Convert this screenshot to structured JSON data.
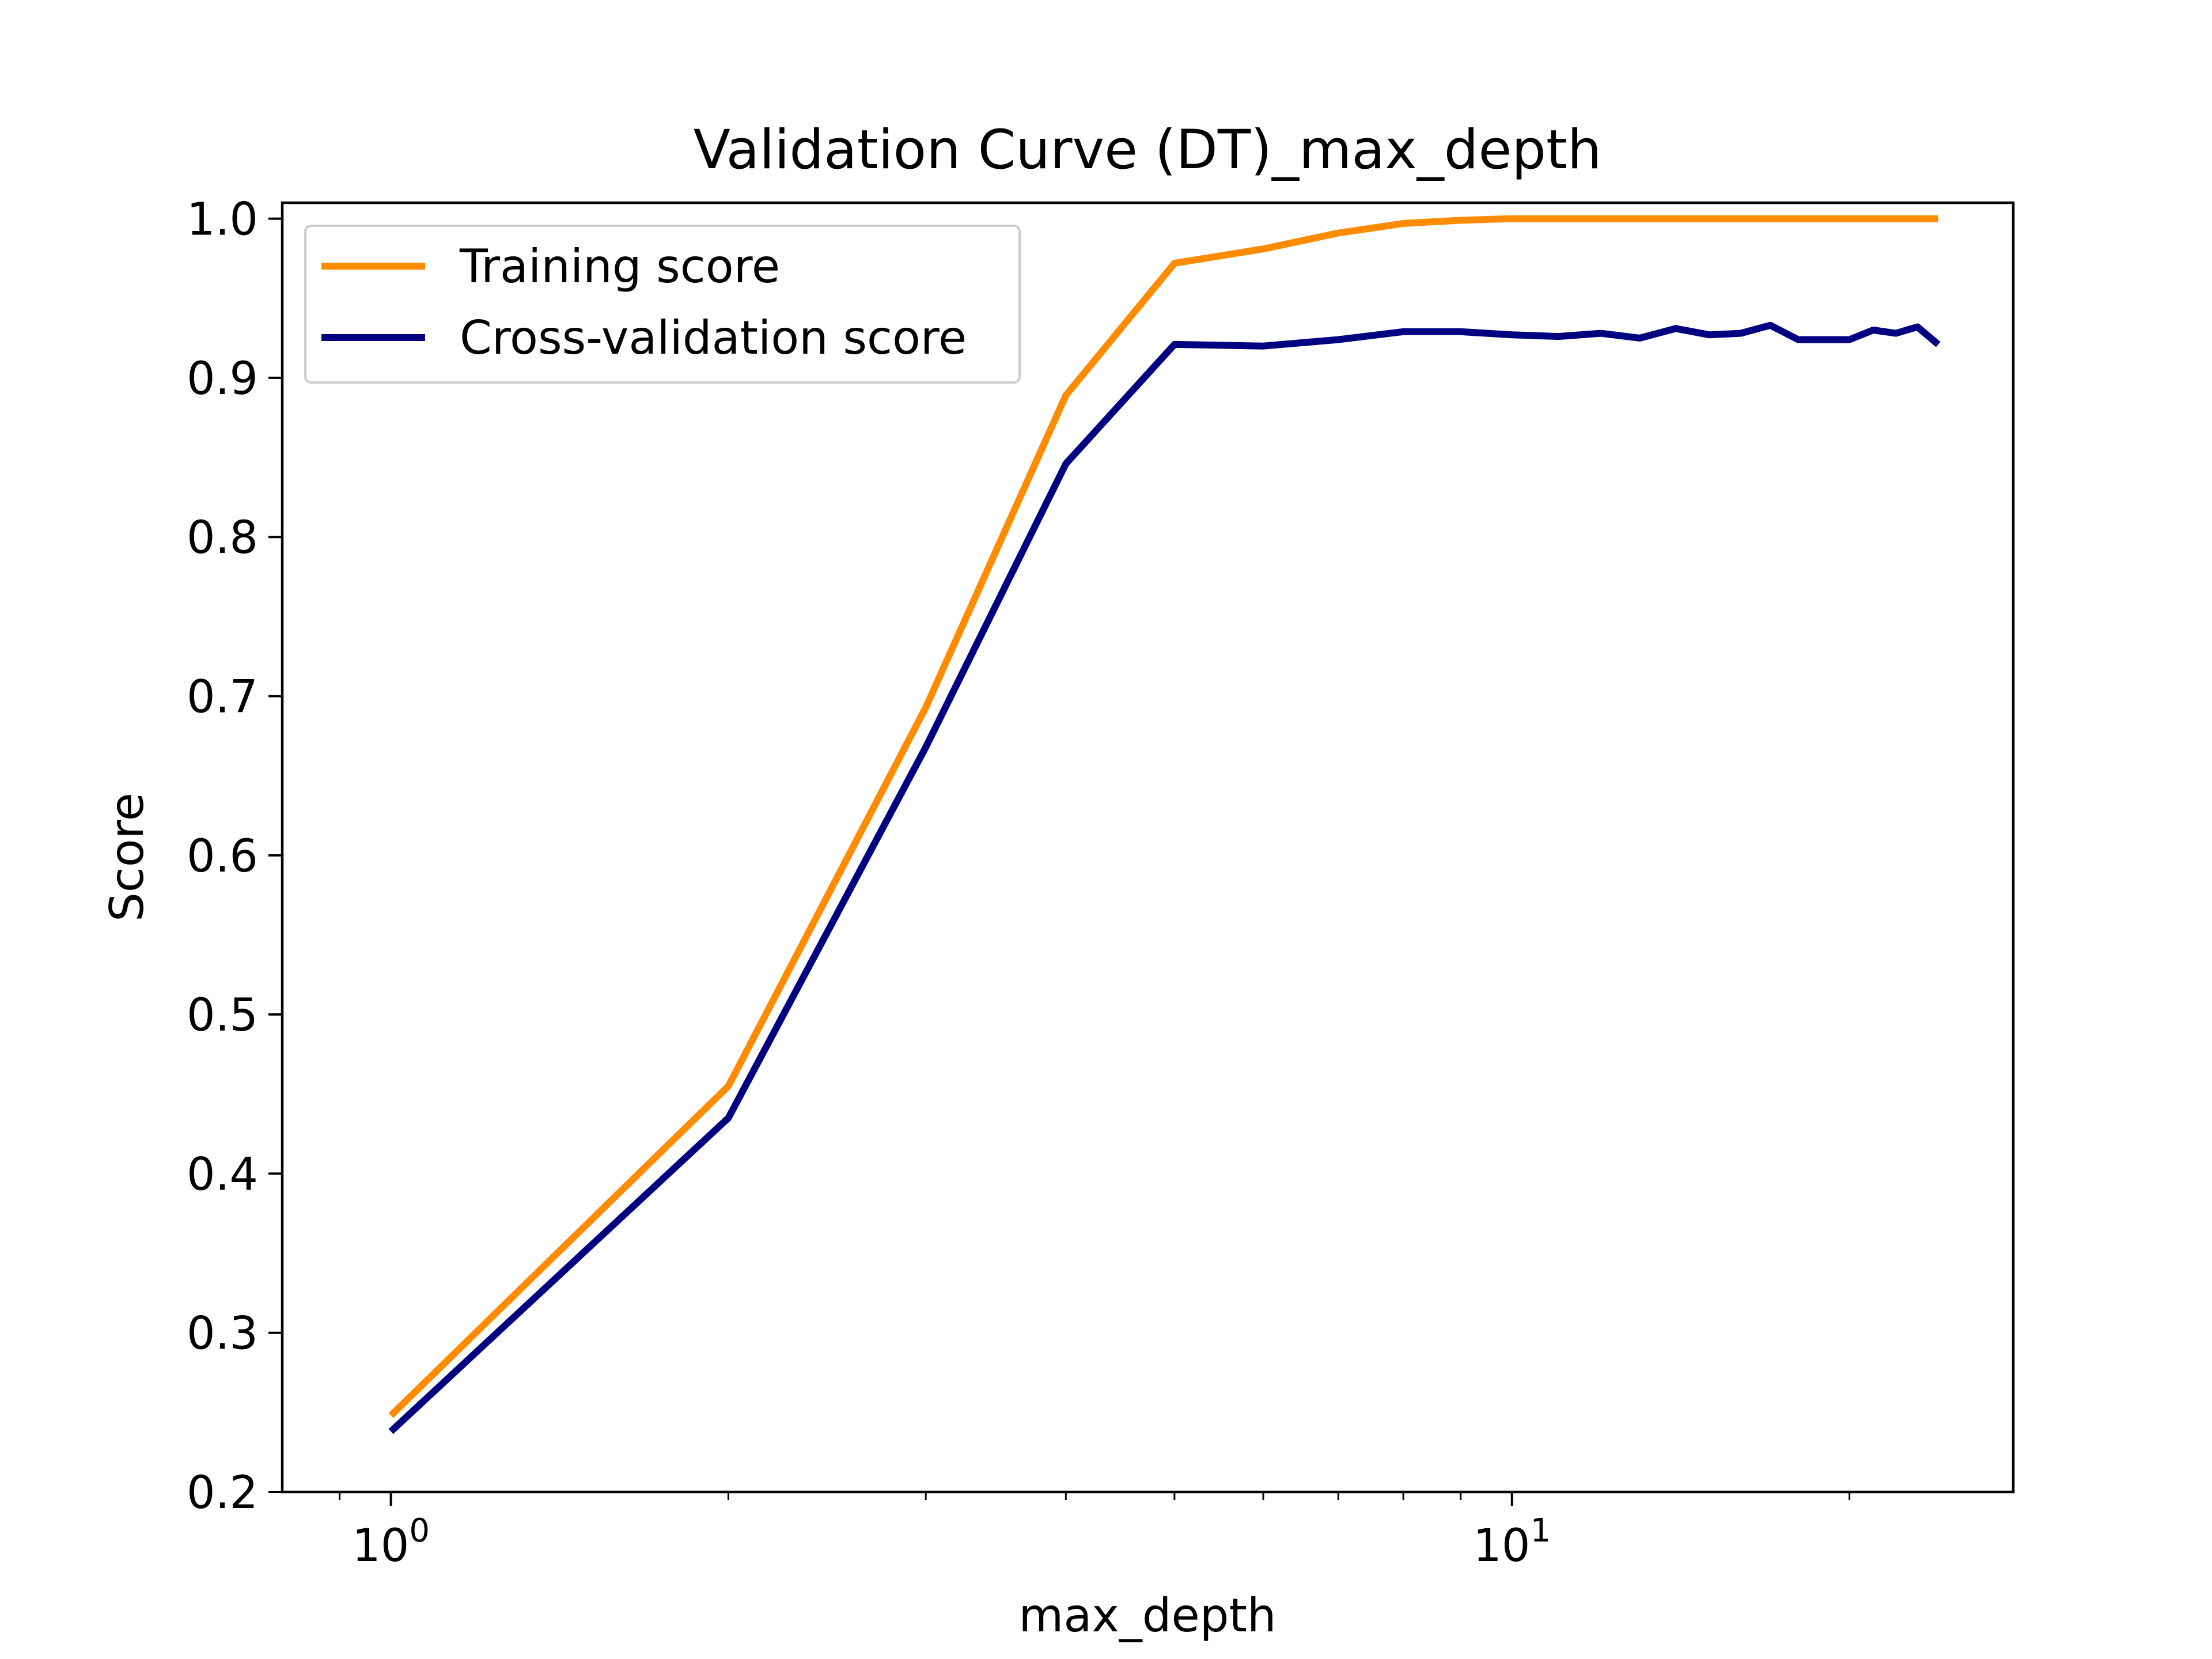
{
  "chart_data": {
    "type": "line",
    "title": "Validation Curve (DT)_max_depth",
    "xlabel": "max_depth",
    "ylabel": "Score",
    "x_scale": "log",
    "xlim": [
      0.8,
      28
    ],
    "ylim": [
      0.2,
      1.01
    ],
    "x_ticks": [
      {
        "value": 1,
        "base": "10",
        "exp": "0"
      },
      {
        "value": 10,
        "base": "10",
        "exp": "1"
      }
    ],
    "x_minor_ticks": [
      0.9,
      2,
      3,
      4,
      5,
      6,
      7,
      8,
      9,
      20
    ],
    "y_ticks": [
      0.2,
      0.3,
      0.4,
      0.5,
      0.6,
      0.7,
      0.8,
      0.9,
      1.0
    ],
    "y_tick_labels": [
      "0.2",
      "0.3",
      "0.4",
      "0.5",
      "0.6",
      "0.7",
      "0.8",
      "0.9",
      "1.0"
    ],
    "grid": false,
    "legend_position": "top-left",
    "x": [
      1,
      2,
      3,
      4,
      5,
      6,
      7,
      8,
      9,
      10,
      11,
      12,
      13,
      14,
      15,
      16,
      17,
      18,
      19,
      20,
      21,
      22,
      23,
      24
    ],
    "series": [
      {
        "name": "Training score",
        "color": "#ff8c00",
        "values": [
          0.248,
          0.455,
          0.693,
          0.889,
          0.972,
          0.981,
          0.991,
          0.997,
          0.999,
          1.0,
          1.0,
          1.0,
          1.0,
          1.0,
          1.0,
          1.0,
          1.0,
          1.0,
          1.0,
          1.0,
          1.0,
          1.0,
          1.0,
          1.0
        ]
      },
      {
        "name": "Cross-validation score",
        "color": "#000080",
        "values": [
          0.238,
          0.435,
          0.668,
          0.846,
          0.921,
          0.92,
          0.924,
          0.929,
          0.929,
          0.927,
          0.926,
          0.928,
          0.925,
          0.931,
          0.927,
          0.928,
          0.933,
          0.924,
          0.924,
          0.924,
          0.93,
          0.928,
          0.932,
          0.921
        ]
      }
    ]
  }
}
